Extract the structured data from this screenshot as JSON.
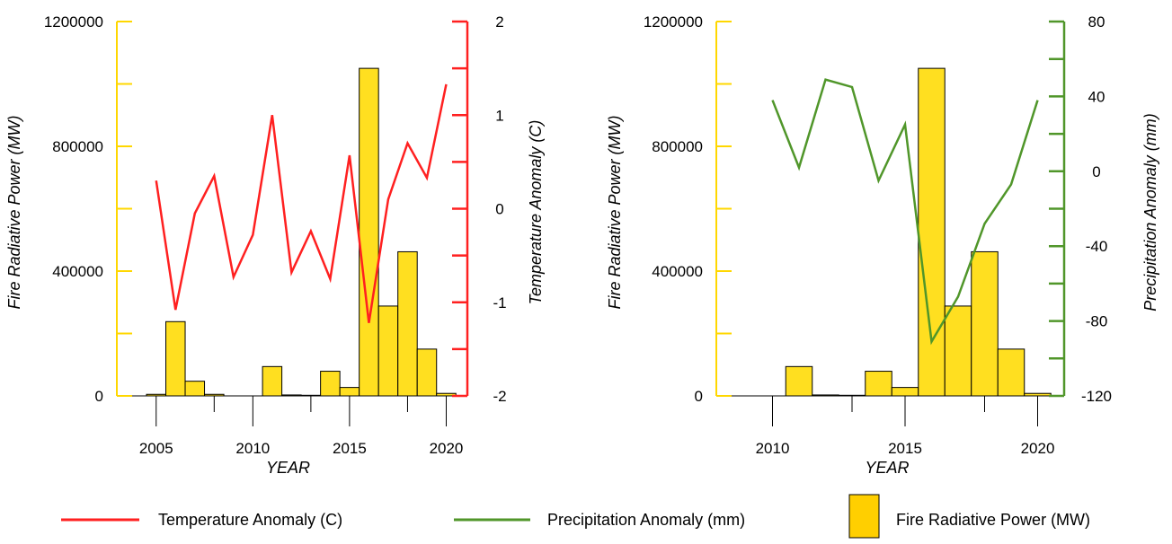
{
  "chart_data": [
    {
      "type": "bar+line",
      "xlabel": "YEAR",
      "y_left_label": "Fire Radiative Power (MW)",
      "y_right_label": "Temperature Anomaly (C)",
      "x_ticks": [
        2005,
        2010,
        2015,
        2020
      ],
      "y_left_ticks": [
        "0",
        "400000",
        "800000",
        "1200000"
      ],
      "y_right_ticks": [
        "-2",
        "-1",
        "0",
        "1",
        "2"
      ],
      "y_left_lim": [
        0,
        1200000
      ],
      "y_right_lim": [
        -2,
        2
      ],
      "bars": {
        "name": "Fire Radiative Power (MW)",
        "color": "#ffdf20",
        "x": [
          2005,
          2006,
          2007,
          2008,
          2009,
          2010,
          2011,
          2012,
          2013,
          2014,
          2015,
          2016,
          2017,
          2018,
          2019,
          2020
        ],
        "values": [
          5000,
          238000,
          47000,
          5000,
          0,
          0,
          94000,
          3000,
          2000,
          79000,
          27000,
          1050000,
          288000,
          462000,
          150000,
          8000
        ]
      },
      "line": {
        "name": "Temperature Anomaly (C)",
        "color": "#ff2020",
        "x": [
          2005,
          2006,
          2007,
          2008,
          2009,
          2010,
          2011,
          2012,
          2013,
          2014,
          2015,
          2016,
          2017,
          2018,
          2019,
          2020
        ],
        "values": [
          0.3,
          -1.08,
          -0.05,
          0.35,
          -0.73,
          -0.28,
          1.0,
          -0.68,
          -0.24,
          -0.75,
          0.57,
          -1.22,
          0.1,
          0.7,
          0.33,
          1.33
        ]
      }
    },
    {
      "type": "bar+line",
      "xlabel": "YEAR",
      "y_left_label": "Fire Radiative Power (MW)",
      "y_right_label": "Precipitation Anomaly (mm)",
      "x_ticks": [
        2010,
        2015,
        2020
      ],
      "y_left_ticks": [
        "0",
        "400000",
        "800000",
        "1200000"
      ],
      "y_right_ticks": [
        "-120",
        "-80",
        "-40",
        "0",
        "40",
        "80"
      ],
      "y_left_lim": [
        0,
        1200000
      ],
      "y_right_lim": [
        -120,
        80
      ],
      "bars": {
        "name": "Fire Radiative Power (MW)",
        "color": "#ffdf20",
        "x": [
          2010,
          2011,
          2012,
          2013,
          2014,
          2015,
          2016,
          2017,
          2018,
          2019,
          2020
        ],
        "values": [
          0,
          94000,
          3000,
          2000,
          79000,
          27000,
          1050000,
          288000,
          462000,
          150000,
          8000
        ]
      },
      "line": {
        "name": "Precipitation Anomaly (mm)",
        "color": "#50962a",
        "x": [
          2010,
          2011,
          2012,
          2013,
          2014,
          2015,
          2016,
          2017,
          2018,
          2019,
          2020
        ],
        "values": [
          38,
          2,
          49,
          45,
          -5,
          25,
          -91,
          -67,
          -28,
          -7,
          38
        ]
      }
    }
  ],
  "legend": {
    "temperature_label": "Temperature Anomaly (C)",
    "precipitation_label": "Precipitation Anomaly (mm)",
    "frp_label": "Fire Radiative Power (MW)"
  },
  "colors": {
    "left_axis": "#ffd700",
    "temperature": "#ff2020",
    "precipitation": "#50962a",
    "bar_fill": "#ffdf20",
    "legend_bar_fill": "#ffcf00"
  }
}
